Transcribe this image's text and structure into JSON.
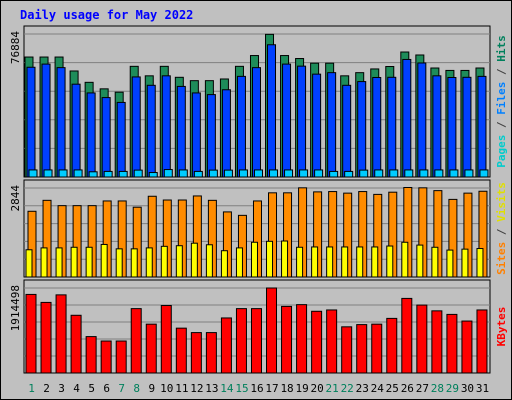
{
  "chart_data": {
    "type": "bar",
    "title": "Daily usage for May 2022",
    "days": [
      "1",
      "2",
      "3",
      "4",
      "5",
      "6",
      "7",
      "8",
      "9",
      "10",
      "11",
      "12",
      "13",
      "14",
      "15",
      "16",
      "17",
      "18",
      "19",
      "20",
      "21",
      "22",
      "23",
      "24",
      "25",
      "26",
      "27",
      "28",
      "29",
      "30",
      "31"
    ],
    "weekend_days": [
      "1",
      "7",
      "8",
      "14",
      "15",
      "21",
      "22",
      "28",
      "29"
    ],
    "panels": [
      {
        "name": "hits-files-pages",
        "ymax_label": "76884",
        "ymax": 76884,
        "ylabel_parts": [
          {
            "text": "Pages",
            "color": "#00cccc"
          },
          {
            "text": " / ",
            "color": "#404040"
          },
          {
            "text": "Files",
            "color": "#0080ff"
          },
          {
            "text": " / ",
            "color": "#404040"
          },
          {
            "text": "Hits",
            "color": "#00805c"
          }
        ],
        "series": [
          {
            "name": "Hits",
            "color": "#1e8c5a",
            "values": [
              64500,
              64500,
              64500,
              57000,
              50900,
              47400,
              45600,
              59500,
              54400,
              59500,
              53600,
              51800,
              51800,
              52700,
              59500,
              65300,
              76700,
              65300,
              63700,
              61200,
              61200,
              54400,
              56100,
              58100,
              59400,
              67200,
              65600,
              58600,
              57300,
              57300,
              58600
            ]
          },
          {
            "name": "Files",
            "color": "#0040ff",
            "values": [
              59000,
              60700,
              58800,
              49900,
              45200,
              42700,
              40100,
              53800,
              49300,
              54400,
              48700,
              45200,
              44300,
              46900,
              54100,
              58800,
              71100,
              60700,
              59600,
              55300,
              56100,
              49300,
              51300,
              53500,
              53600,
              63200,
              61300,
              54400,
              53500,
              53600,
              54100
            ]
          },
          {
            "name": "Pages",
            "color": "#00ccff",
            "values": [
              3800,
              3800,
              3800,
              3800,
              2800,
              3000,
              3000,
              3700,
              2400,
              4000,
              3800,
              3000,
              3700,
              3700,
              3800,
              3800,
              3800,
              3800,
              3800,
              3800,
              3000,
              3000,
              3700,
              3800,
              3800,
              3800,
              3800,
              3800,
              3800,
              3800,
              3800
            ]
          }
        ]
      },
      {
        "name": "visits-sites",
        "ymax_label": "2844",
        "ymax": 2844,
        "ylabel_parts": [
          {
            "text": "Sites",
            "color": "#ff8000"
          },
          {
            "text": " / ",
            "color": "#404040"
          },
          {
            "text": "Visits",
            "color": "#e0e000"
          }
        ],
        "series": [
          {
            "name": "Visits",
            "color": "#ff8c00",
            "values": [
              2100,
              2450,
              2280,
              2280,
              2280,
              2430,
              2430,
              2230,
              2580,
              2460,
              2460,
              2590,
              2450,
              2080,
              1970,
              2430,
              2690,
              2690,
              2850,
              2720,
              2730,
              2680,
              2730,
              2640,
              2710,
              2860,
              2850,
              2760,
              2480,
              2680,
              2740
            ]
          },
          {
            "name": "Sites",
            "color": "#ffff00",
            "values": [
              870,
              930,
              930,
              950,
              950,
              1040,
              900,
              900,
              930,
              980,
              1000,
              1080,
              1030,
              840,
              930,
              1110,
              1140,
              1150,
              950,
              960,
              960,
              960,
              960,
              960,
              990,
              1110,
              1020,
              950,
              860,
              890,
              910
            ]
          }
        ]
      },
      {
        "name": "kbytes",
        "ymax_label": "1914498",
        "ymax": 1914498,
        "ylabel_parts": [
          {
            "text": "KBytes",
            "color": "#ff0000"
          }
        ],
        "series": [
          {
            "name": "KBytes",
            "color": "#ff0000",
            "values": [
              1770000,
              1590000,
              1760000,
              1300000,
              820000,
              720000,
              720000,
              1450000,
              1100000,
              1520000,
              1010000,
              910000,
              910000,
              1240000,
              1450000,
              1450000,
              1914498,
              1500000,
              1540000,
              1390000,
              1420000,
              1040000,
              1090000,
              1100000,
              1230000,
              1680000,
              1530000,
              1400000,
              1320000,
              1170000,
              1420000
            ]
          }
        ]
      }
    ]
  }
}
